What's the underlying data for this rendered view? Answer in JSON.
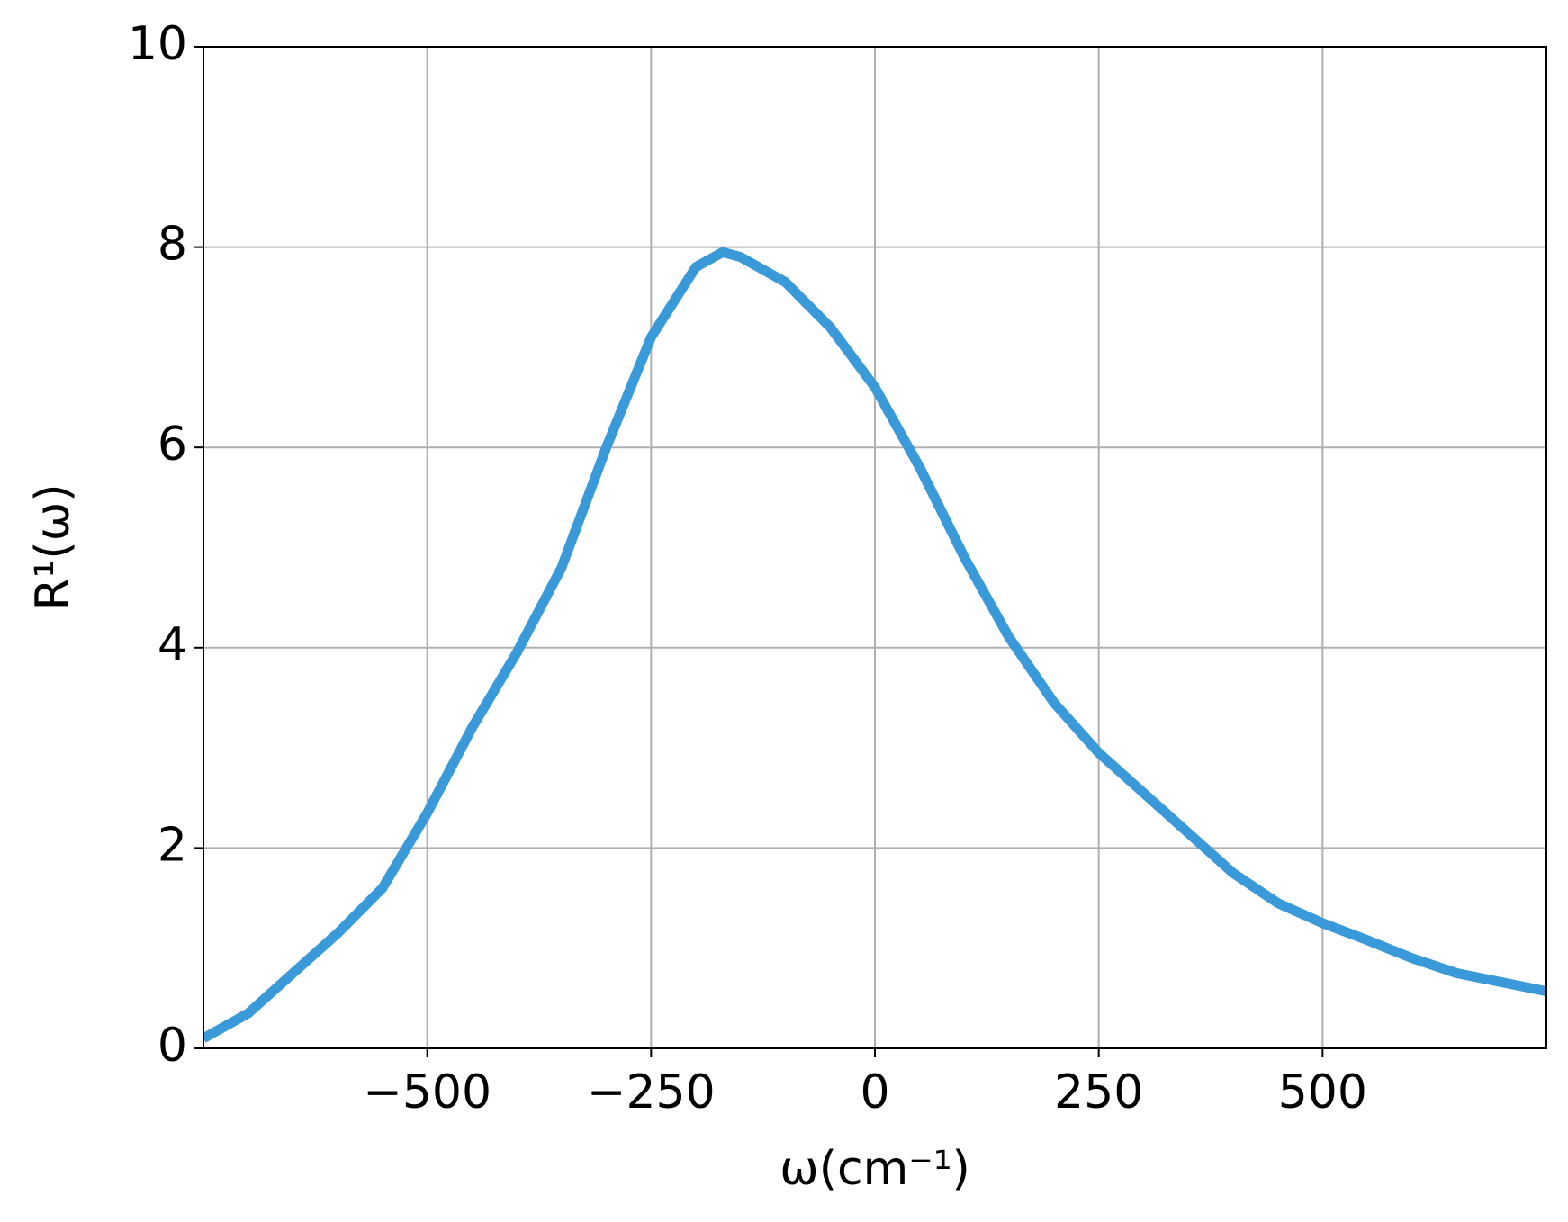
{
  "chart_data": {
    "type": "line",
    "x_label": "ω(cm⁻¹)",
    "y_label": "R¹(ω)",
    "x": [
      -750,
      -700,
      -650,
      -600,
      -550,
      -500,
      -450,
      -400,
      -350,
      -300,
      -250,
      -200,
      -170,
      -150,
      -100,
      -50,
      0,
      50,
      100,
      150,
      200,
      250,
      300,
      350,
      400,
      450,
      500,
      550,
      600,
      650,
      700,
      750
    ],
    "series": [
      {
        "color": "#3a9ad9",
        "values": [
          0.1,
          0.35,
          0.75,
          1.15,
          1.6,
          2.35,
          3.2,
          3.95,
          4.8,
          6.0,
          7.1,
          7.8,
          7.95,
          7.9,
          7.65,
          7.2,
          6.6,
          5.8,
          4.9,
          4.1,
          3.45,
          2.95,
          2.55,
          2.15,
          1.75,
          1.45,
          1.25,
          1.08,
          0.9,
          0.75,
          0.66,
          0.57
        ]
      }
    ],
    "xlim": [
      -750,
      750
    ],
    "ylim": [
      0,
      10
    ],
    "xticks": [
      {
        "value": -500,
        "label": "−500"
      },
      {
        "value": -250,
        "label": "−250"
      },
      0,
      250,
      500
    ],
    "yticks": [
      0,
      2,
      4,
      6,
      8,
      10
    ],
    "grid": true
  }
}
